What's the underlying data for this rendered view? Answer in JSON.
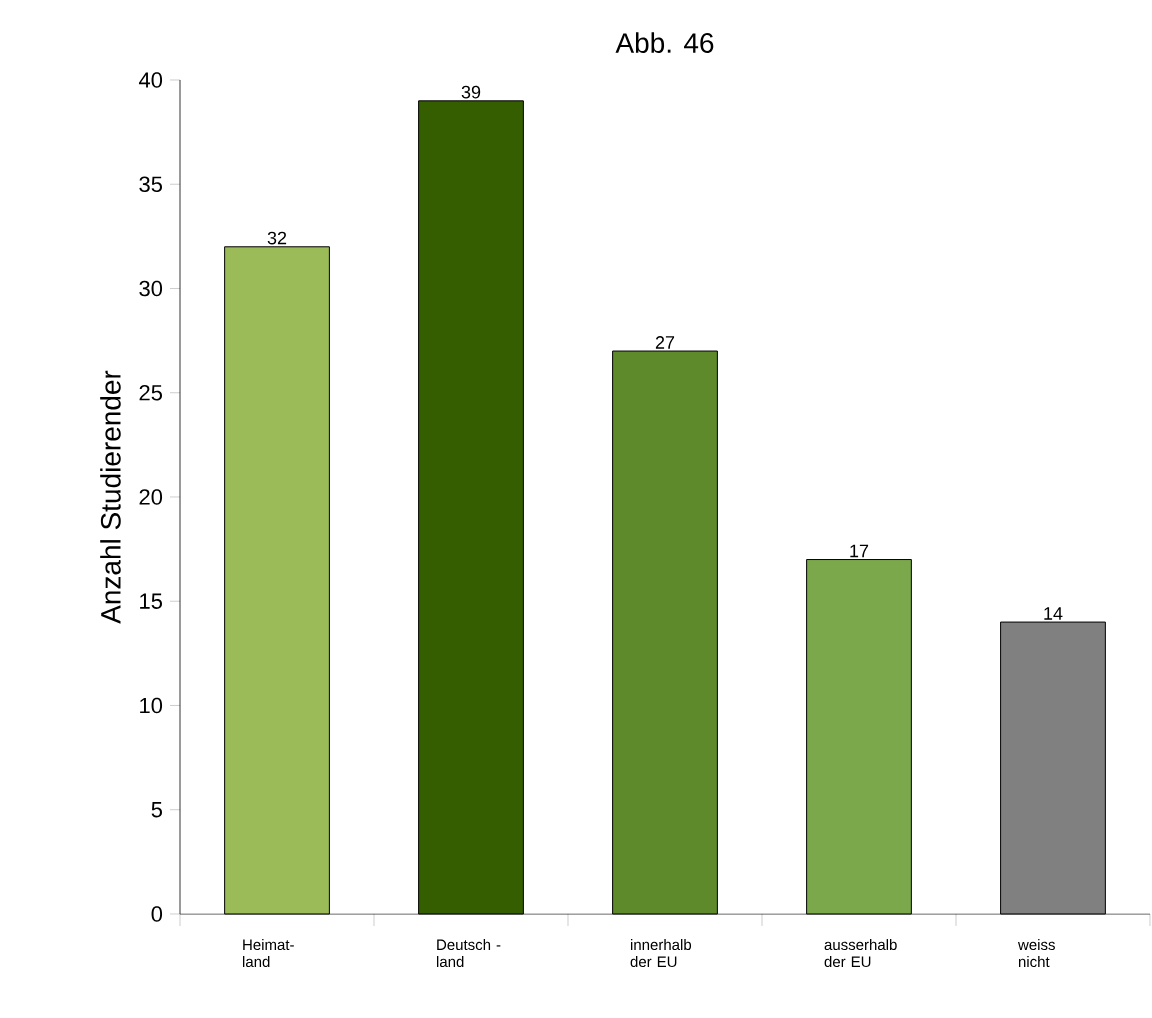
{
  "chart_data": {
    "type": "bar",
    "title": "Abb. 46",
    "ylabel": "Anzahl Studierender",
    "categories": [
      "Heimat- land",
      "Deutsch - land",
      "innerhalb der EU",
      "ausserhalb der EU",
      "weiss nicht"
    ],
    "values": [
      32,
      39,
      27,
      17,
      14
    ],
    "colors": [
      "#9bbb59",
      "#355e00",
      "#5e8a2b",
      "#7ba84a",
      "#808080"
    ],
    "ylim": [
      0,
      40
    ],
    "yticks": [
      0,
      5,
      10,
      15,
      20,
      25,
      30,
      35,
      40
    ],
    "data_labels": true,
    "grid": false
  }
}
